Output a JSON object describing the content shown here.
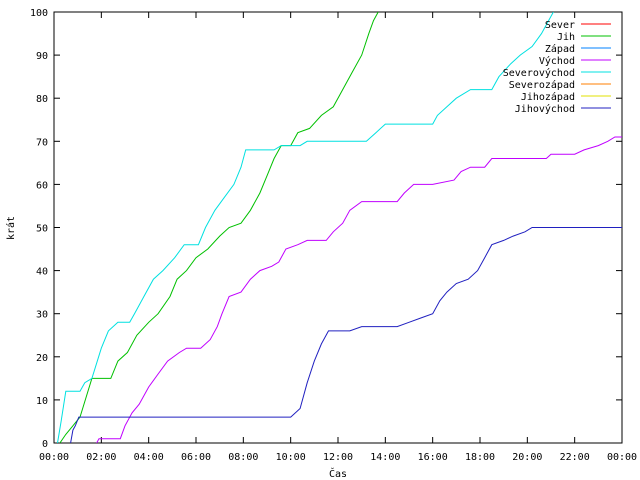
{
  "chart_data": {
    "type": "line",
    "title": "",
    "xlabel": "Čas",
    "ylabel": "krát",
    "xlim": [
      0,
      24
    ],
    "ylim": [
      0,
      100
    ],
    "x_ticks": [
      {
        "v": 0,
        "label": "00:00"
      },
      {
        "v": 2,
        "label": "02:00"
      },
      {
        "v": 4,
        "label": "04:00"
      },
      {
        "v": 6,
        "label": "06:00"
      },
      {
        "v": 8,
        "label": "08:00"
      },
      {
        "v": 10,
        "label": "10:00"
      },
      {
        "v": 12,
        "label": "12:00"
      },
      {
        "v": 14,
        "label": "14:00"
      },
      {
        "v": 16,
        "label": "16:00"
      },
      {
        "v": 18,
        "label": "18:00"
      },
      {
        "v": 20,
        "label": "20:00"
      },
      {
        "v": 22,
        "label": "22:00"
      },
      {
        "v": 24,
        "label": "00:00"
      }
    ],
    "y_ticks": [
      0,
      10,
      20,
      30,
      40,
      50,
      60,
      70,
      80,
      90,
      100
    ],
    "legend_position": "top-right",
    "series": [
      {
        "name": "Sever",
        "color": "#ff0000",
        "points": []
      },
      {
        "name": "Jih",
        "color": "#00c000",
        "points": [
          [
            0.25,
            0
          ],
          [
            0.5,
            2
          ],
          [
            0.8,
            4
          ],
          [
            1.1,
            6
          ],
          [
            1.6,
            15
          ],
          [
            2.4,
            15
          ],
          [
            2.7,
            19
          ],
          [
            3.1,
            21
          ],
          [
            3.5,
            25
          ],
          [
            4.0,
            28
          ],
          [
            4.4,
            30
          ],
          [
            4.9,
            34
          ],
          [
            5.2,
            38
          ],
          [
            5.6,
            40
          ],
          [
            6.0,
            43
          ],
          [
            6.5,
            45
          ],
          [
            7.0,
            48
          ],
          [
            7.4,
            50
          ],
          [
            7.9,
            51
          ],
          [
            8.3,
            54
          ],
          [
            8.7,
            58
          ],
          [
            9.0,
            62
          ],
          [
            9.3,
            66
          ],
          [
            9.6,
            69
          ],
          [
            10.0,
            69
          ],
          [
            10.3,
            72
          ],
          [
            10.8,
            73
          ],
          [
            11.3,
            76
          ],
          [
            11.8,
            78
          ],
          [
            12.2,
            82
          ],
          [
            12.6,
            86
          ],
          [
            13.0,
            90
          ],
          [
            13.3,
            95
          ],
          [
            13.5,
            98
          ],
          [
            13.7,
            100
          ]
        ]
      },
      {
        "name": "Západ",
        "color": "#0080ff",
        "points": []
      },
      {
        "name": "Východ",
        "color": "#c000ff",
        "points": [
          [
            1.8,
            0
          ],
          [
            1.9,
            1
          ],
          [
            2.8,
            1
          ],
          [
            3.0,
            4
          ],
          [
            3.3,
            7
          ],
          [
            3.6,
            9
          ],
          [
            4.0,
            13
          ],
          [
            4.4,
            16
          ],
          [
            4.8,
            19
          ],
          [
            5.3,
            21
          ],
          [
            5.6,
            22
          ],
          [
            6.2,
            22
          ],
          [
            6.6,
            24
          ],
          [
            6.9,
            27
          ],
          [
            7.1,
            30
          ],
          [
            7.4,
            34
          ],
          [
            7.9,
            35
          ],
          [
            8.3,
            38
          ],
          [
            8.7,
            40
          ],
          [
            9.2,
            41
          ],
          [
            9.5,
            42
          ],
          [
            9.8,
            45
          ],
          [
            10.3,
            46
          ],
          [
            10.7,
            47
          ],
          [
            11.5,
            47
          ],
          [
            11.8,
            49
          ],
          [
            12.2,
            51
          ],
          [
            12.5,
            54
          ],
          [
            13.0,
            56
          ],
          [
            13.5,
            56
          ],
          [
            14.5,
            56
          ],
          [
            14.8,
            58
          ],
          [
            15.2,
            60
          ],
          [
            16.0,
            60
          ],
          [
            16.9,
            61
          ],
          [
            17.2,
            63
          ],
          [
            17.6,
            64
          ],
          [
            18.2,
            64
          ],
          [
            18.5,
            66
          ],
          [
            19.5,
            66
          ],
          [
            20.8,
            66
          ],
          [
            21.0,
            67
          ],
          [
            22.0,
            67
          ],
          [
            22.4,
            68
          ],
          [
            23.0,
            69
          ],
          [
            23.4,
            70
          ],
          [
            23.7,
            71
          ],
          [
            24.0,
            71
          ]
        ]
      },
      {
        "name": "Severovýchod",
        "color": "#00e0e0",
        "points": [
          [
            0.15,
            0
          ],
          [
            0.3,
            5
          ],
          [
            0.5,
            12
          ],
          [
            1.1,
            12
          ],
          [
            1.3,
            14
          ],
          [
            1.6,
            15
          ],
          [
            2.0,
            22
          ],
          [
            2.3,
            26
          ],
          [
            2.7,
            28
          ],
          [
            3.2,
            28
          ],
          [
            3.4,
            30
          ],
          [
            3.8,
            34
          ],
          [
            4.2,
            38
          ],
          [
            4.6,
            40
          ],
          [
            5.1,
            43
          ],
          [
            5.5,
            46
          ],
          [
            6.1,
            46
          ],
          [
            6.4,
            50
          ],
          [
            6.8,
            54
          ],
          [
            7.2,
            57
          ],
          [
            7.6,
            60
          ],
          [
            7.9,
            64
          ],
          [
            8.1,
            68
          ],
          [
            9.0,
            68
          ],
          [
            9.3,
            68
          ],
          [
            9.6,
            69
          ],
          [
            10.4,
            69
          ],
          [
            10.7,
            70
          ],
          [
            12.0,
            70
          ],
          [
            13.2,
            70
          ],
          [
            13.6,
            72
          ],
          [
            14.0,
            74
          ],
          [
            16.0,
            74
          ],
          [
            16.2,
            76
          ],
          [
            16.6,
            78
          ],
          [
            17.0,
            80
          ],
          [
            17.6,
            82
          ],
          [
            18.5,
            82
          ],
          [
            18.8,
            85
          ],
          [
            19.3,
            88
          ],
          [
            19.7,
            90
          ],
          [
            20.2,
            92
          ],
          [
            20.6,
            95
          ],
          [
            20.9,
            98
          ],
          [
            21.1,
            100
          ]
        ]
      },
      {
        "name": "Severozápad",
        "color": "#ff7f00",
        "points": []
      },
      {
        "name": "Jihozápad",
        "color": "#e0e000",
        "points": []
      },
      {
        "name": "Jihovýchod",
        "color": "#2020c0",
        "points": [
          [
            0.7,
            0
          ],
          [
            0.8,
            3
          ],
          [
            0.9,
            4
          ],
          [
            1.05,
            6
          ],
          [
            2.5,
            6
          ],
          [
            4.0,
            6
          ],
          [
            6.0,
            6
          ],
          [
            8.0,
            6
          ],
          [
            10.0,
            6
          ],
          [
            10.4,
            8
          ],
          [
            10.7,
            14
          ],
          [
            11.0,
            19
          ],
          [
            11.3,
            23
          ],
          [
            11.6,
            26
          ],
          [
            12.5,
            26
          ],
          [
            13.0,
            27
          ],
          [
            14.5,
            27
          ],
          [
            15.0,
            28
          ],
          [
            15.5,
            29
          ],
          [
            16.0,
            30
          ],
          [
            16.3,
            33
          ],
          [
            16.6,
            35
          ],
          [
            17.0,
            37
          ],
          [
            17.5,
            38
          ],
          [
            17.9,
            40
          ],
          [
            18.2,
            43
          ],
          [
            18.5,
            46
          ],
          [
            19.0,
            47
          ],
          [
            19.4,
            48
          ],
          [
            19.9,
            49
          ],
          [
            20.2,
            50
          ],
          [
            24.0,
            50
          ]
        ]
      }
    ]
  }
}
